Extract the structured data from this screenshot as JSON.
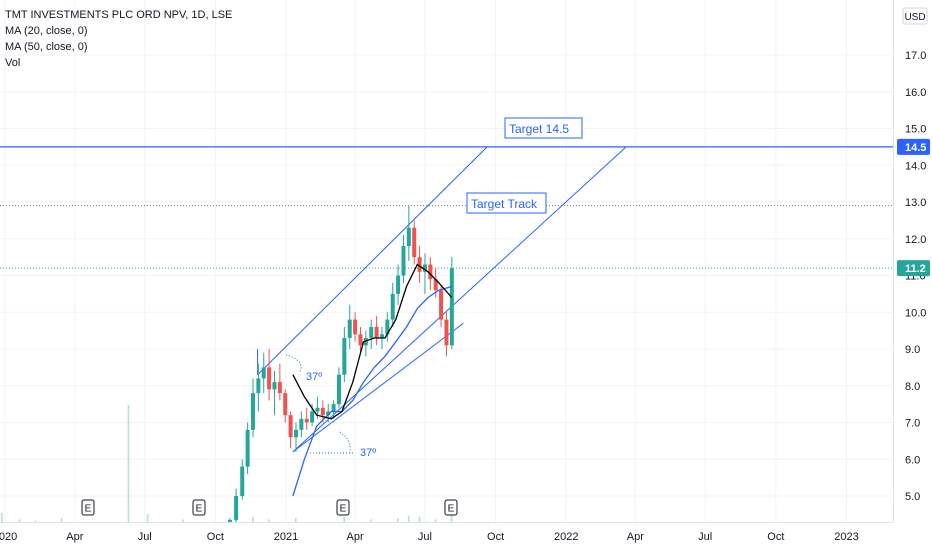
{
  "header": {
    "symbol": "TMT INVESTMENTS PLC ORD NPV, 1D, LSE",
    "indicators": [
      "MA (20, close, 0)",
      "MA (50, close, 0)",
      "Vol"
    ],
    "currency": "USD"
  },
  "chart_data": {
    "type": "candlestick",
    "y_axis": {
      "ticks": [
        5.0,
        6.0,
        7.0,
        8.0,
        9.0,
        10.0,
        11.0,
        12.0,
        13.0,
        14.0,
        15.0,
        16.0,
        17.0
      ],
      "position": "right"
    },
    "x_axis": {
      "ticks": [
        "2020",
        "Apr",
        "Jul",
        "Oct",
        "2021",
        "Apr",
        "Jul",
        "Oct",
        "2022",
        "Apr",
        "Jul",
        "Oct",
        "2023"
      ]
    },
    "price_labels": [
      {
        "text": "14.5",
        "value": 14.5,
        "color": "#2962ff"
      },
      {
        "text": "11.2",
        "value": 11.2,
        "color": "#26a69a"
      }
    ],
    "horizontal_lines": [
      {
        "value": 14.5,
        "style": "solid",
        "color": "#2962ff"
      },
      {
        "value": 12.9,
        "style": "dotted",
        "color": "#787b86"
      },
      {
        "value": 11.2,
        "style": "dotted",
        "color": "#26a69a"
      }
    ],
    "annotations": [
      {
        "text": "Target 14.5",
        "type": "box"
      },
      {
        "text": "Target Track",
        "type": "box"
      },
      {
        "text": "37º",
        "type": "angle"
      },
      {
        "text": "37º",
        "type": "angle"
      }
    ],
    "earnings_markers": [
      "E",
      "E",
      "E",
      "E"
    ],
    "channel_lines": [
      {
        "from": [
          "2020-11-25",
          8.3
        ],
        "to": [
          "2021-09-20",
          14.5
        ]
      },
      {
        "from": [
          "2021-01-10",
          6.2
        ],
        "to": [
          "2022-03-20",
          14.5
        ]
      },
      {
        "from": [
          "2021-01-10",
          6.2
        ],
        "to": [
          "2021-08-20",
          9.7
        ]
      },
      {
        "from": [
          "2020-11-25",
          8.3
        ],
        "to": [
          "2020-11-25",
          9.0
        ]
      }
    ],
    "candles": [
      [
        "2020-10-20",
        4.2,
        4.4,
        4.15,
        4.35
      ],
      [
        "2020-10-28",
        4.35,
        5.2,
        4.3,
        5.0
      ],
      [
        "2020-11-05",
        5.0,
        6.0,
        4.9,
        5.8
      ],
      [
        "2020-11-12",
        5.8,
        7.0,
        5.6,
        6.8
      ],
      [
        "2020-11-19",
        6.8,
        8.2,
        6.6,
        7.8
      ],
      [
        "2020-11-26",
        7.8,
        8.6,
        7.3,
        8.2
      ],
      [
        "2020-12-03",
        8.2,
        8.9,
        7.8,
        8.5
      ],
      [
        "2020-12-10",
        8.5,
        9.0,
        7.6,
        7.9
      ],
      [
        "2020-12-17",
        7.9,
        8.4,
        7.2,
        8.1
      ],
      [
        "2020-12-24",
        8.1,
        8.6,
        7.6,
        7.8
      ],
      [
        "2020-12-31",
        7.8,
        7.9,
        7.0,
        7.2
      ],
      [
        "2021-01-07",
        7.2,
        7.3,
        6.3,
        6.6
      ],
      [
        "2021-01-14",
        6.6,
        7.0,
        6.2,
        6.8
      ],
      [
        "2021-01-21",
        6.8,
        7.3,
        6.6,
        7.1
      ],
      [
        "2021-01-28",
        7.1,
        7.4,
        6.8,
        7.0
      ],
      [
        "2021-02-04",
        7.0,
        7.5,
        6.9,
        7.3
      ],
      [
        "2021-02-11",
        7.3,
        7.7,
        7.1,
        7.4
      ],
      [
        "2021-02-18",
        7.4,
        7.6,
        7.0,
        7.2
      ],
      [
        "2021-02-25",
        7.2,
        7.5,
        7.0,
        7.3
      ],
      [
        "2021-03-04",
        7.3,
        7.6,
        7.1,
        7.5
      ],
      [
        "2021-03-11",
        7.5,
        8.5,
        7.4,
        8.3
      ],
      [
        "2021-03-18",
        8.3,
        9.6,
        8.1,
        9.3
      ],
      [
        "2021-03-25",
        9.3,
        10.2,
        9.0,
        9.8
      ],
      [
        "2021-04-01",
        9.8,
        10.0,
        9.2,
        9.4
      ],
      [
        "2021-04-08",
        9.4,
        9.6,
        8.9,
        9.1
      ],
      [
        "2021-04-15",
        9.1,
        9.5,
        8.8,
        9.3
      ],
      [
        "2021-04-22",
        9.3,
        9.8,
        9.0,
        9.6
      ],
      [
        "2021-04-29",
        9.6,
        9.9,
        9.1,
        9.3
      ],
      [
        "2021-05-06",
        9.3,
        9.6,
        9.0,
        9.4
      ],
      [
        "2021-05-13",
        9.4,
        10.0,
        9.2,
        9.8
      ],
      [
        "2021-05-20",
        9.8,
        10.8,
        9.6,
        10.5
      ],
      [
        "2021-05-27",
        10.5,
        11.3,
        10.2,
        11.0
      ],
      [
        "2021-06-03",
        11.0,
        12.1,
        10.8,
        11.8
      ],
      [
        "2021-06-10",
        11.8,
        12.9,
        11.4,
        12.3
      ],
      [
        "2021-06-17",
        12.3,
        12.5,
        11.3,
        11.5
      ],
      [
        "2021-06-24",
        11.5,
        11.8,
        10.8,
        11.1
      ],
      [
        "2021-07-01",
        11.1,
        11.6,
        10.5,
        11.3
      ],
      [
        "2021-07-08",
        11.3,
        11.5,
        10.6,
        10.9
      ],
      [
        "2021-07-15",
        10.9,
        11.2,
        10.4,
        10.6
      ],
      [
        "2021-07-22",
        10.6,
        10.7,
        9.6,
        9.8
      ],
      [
        "2021-07-29",
        9.8,
        10.0,
        8.8,
        9.1
      ],
      [
        "2021-08-05",
        9.1,
        11.5,
        9.0,
        11.2
      ]
    ],
    "ma20": [
      [
        "2021-01-10",
        8.3
      ],
      [
        "2021-01-25",
        7.7
      ],
      [
        "2021-02-10",
        7.2
      ],
      [
        "2021-03-01",
        7.1
      ],
      [
        "2021-03-15",
        7.3
      ],
      [
        "2021-03-29",
        8.1
      ],
      [
        "2021-04-12",
        9.2
      ],
      [
        "2021-04-26",
        9.3
      ],
      [
        "2021-05-10",
        9.3
      ],
      [
        "2021-05-24",
        9.8
      ],
      [
        "2021-06-07",
        10.7
      ],
      [
        "2021-06-21",
        11.3
      ],
      [
        "2021-07-05",
        11.1
      ],
      [
        "2021-07-19",
        10.8
      ],
      [
        "2021-08-05",
        10.4
      ]
    ],
    "ma50": [
      [
        "2021-01-10",
        5.0
      ],
      [
        "2021-01-25",
        6.0
      ],
      [
        "2021-02-10",
        6.9
      ],
      [
        "2021-03-01",
        7.3
      ],
      [
        "2021-03-15",
        7.3
      ],
      [
        "2021-03-29",
        7.6
      ],
      [
        "2021-04-12",
        8.1
      ],
      [
        "2021-04-26",
        8.5
      ],
      [
        "2021-05-10",
        8.8
      ],
      [
        "2021-05-24",
        9.2
      ],
      [
        "2021-06-07",
        9.6
      ],
      [
        "2021-06-21",
        10.1
      ],
      [
        "2021-07-05",
        10.4
      ],
      [
        "2021-07-19",
        10.6
      ],
      [
        "2021-08-05",
        10.7
      ]
    ],
    "volume": [
      [
        "2019-12-15",
        0.05
      ],
      [
        "2019-12-28",
        0.07
      ],
      [
        "2020-01-20",
        0.02
      ],
      [
        "2020-02-10",
        0.01
      ],
      [
        "2020-03-15",
        0.03
      ],
      [
        "2020-06-10",
        0.9
      ],
      [
        "2020-07-05",
        0.06
      ],
      [
        "2020-08-20",
        0.02
      ],
      [
        "2020-10-28",
        0.02
      ],
      [
        "2020-11-19",
        0.04
      ],
      [
        "2020-12-10",
        0.02
      ],
      [
        "2021-01-14",
        0.03
      ],
      [
        "2021-03-18",
        0.04
      ],
      [
        "2021-04-22",
        0.02
      ],
      [
        "2021-05-27",
        0.03
      ],
      [
        "2021-06-10",
        0.05
      ],
      [
        "2021-06-24",
        0.04
      ],
      [
        "2021-07-15",
        0.02
      ],
      [
        "2021-08-05",
        0.05
      ]
    ],
    "colors": {
      "up": "#26a69a",
      "down": "#ef5350",
      "line": "#2962ff",
      "ma20": "#000000",
      "ma50": "#2962ff",
      "axis_text": "#131722"
    }
  }
}
